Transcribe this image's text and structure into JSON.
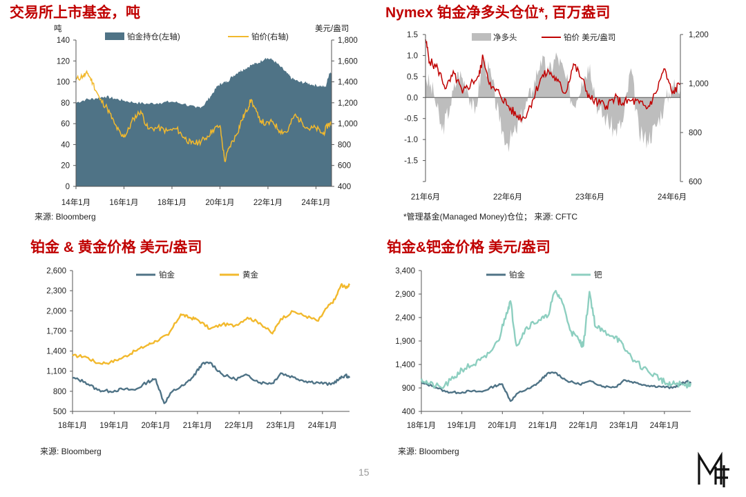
{
  "page_number": "15",
  "logo_text": "MF",
  "colors": {
    "title_red": "#c00000",
    "holdings": "#4f7386",
    "gold_line": "#f2b92d",
    "net_long": "#bdbdbd",
    "price_red": "#c00000",
    "platinum": "#4f7386",
    "gold": "#f2b92d",
    "palladium": "#8dcfc0"
  },
  "panels": [
    {
      "title": "交易所上市基金，吨",
      "source": "来源: Bloomberg",
      "chart_data": {
        "type": "area+line",
        "left_unit": "吨",
        "right_unit": "美元/盎司",
        "legend": [
          "铂金持仓(左轴)",
          "铂价(右轴)"
        ],
        "legend_position": "top",
        "x_ticks": [
          "14年1月",
          "16年1月",
          "18年1月",
          "20年1月",
          "22年1月",
          "24年1月"
        ],
        "x_range": [
          2014.0,
          2024.65
        ],
        "y_left_ticks": [
          "0",
          "20",
          "40",
          "60",
          "80",
          "100",
          "120",
          "140"
        ],
        "y_left_range": [
          0,
          140
        ],
        "y_right_ticks": [
          "400",
          "600",
          "800",
          "1,000",
          "1,200",
          "1,400",
          "1,600",
          "1,800"
        ],
        "y_right_range": [
          400,
          1800
        ],
        "series": [
          {
            "name": "铂金持仓(左轴)",
            "type": "area",
            "x": [
              2014.0,
              2014.4,
              2014.8,
              2015.2,
              2015.6,
              2016.0,
              2016.5,
              2017.0,
              2017.5,
              2018.0,
              2018.5,
              2019.0,
              2019.3,
              2019.6,
              2019.9,
              2020.1,
              2020.3,
              2020.5,
              2020.8,
              2021.0,
              2021.3,
              2021.6,
              2021.9,
              2022.2,
              2022.5,
              2022.8,
              2023.0,
              2023.3,
              2023.6,
              2023.9,
              2024.2,
              2024.4,
              2024.55,
              2024.65
            ],
            "values": [
              80,
              83,
              84,
              86,
              84,
              82,
              80,
              79,
              80,
              81,
              79,
              75,
              77,
              86,
              96,
              99,
              100,
              105,
              110,
              112,
              116,
              118,
              123,
              121,
              115,
              108,
              103,
              100,
              99,
              97,
              96,
              95,
              108,
              110
            ]
          },
          {
            "name": "铂价(右轴)",
            "type": "line",
            "x": [
              2014.0,
              2014.3,
              2014.5,
              2014.7,
              2015.0,
              2015.3,
              2015.6,
              2015.9,
              2016.1,
              2016.4,
              2016.7,
              2017.0,
              2017.4,
              2017.8,
              2018.2,
              2018.5,
              2018.8,
              2019.1,
              2019.4,
              2019.7,
              2020.0,
              2020.2,
              2020.4,
              2020.7,
              2020.9,
              2021.1,
              2021.3,
              2021.6,
              2021.9,
              2022.2,
              2022.5,
              2022.8,
              2023.1,
              2023.4,
              2023.7,
              2024.0,
              2024.3,
              2024.5,
              2024.65
            ],
            "values": [
              1420,
              1460,
              1480,
              1390,
              1230,
              1150,
              1000,
              880,
              900,
              1050,
              1120,
              950,
              960,
              930,
              950,
              870,
              810,
              820,
              860,
              940,
              980,
              640,
              780,
              900,
              1030,
              1120,
              1230,
              1060,
              990,
              1020,
              930,
              920,
              1080,
              1020,
              950,
              960,
              900,
              990,
              1000
            ]
          }
        ]
      }
    },
    {
      "title": "Nymex 铂金净多头仓位*, 百万盎司",
      "source": "*管理基金(Managed Money)仓位； 来源: CFTC",
      "chart_data": {
        "type": "area+line",
        "right_unit": "",
        "legend": [
          "净多头",
          "铂价 美元/盎司"
        ],
        "legend_position": "top",
        "x_ticks": [
          "21年6月",
          "22年6月",
          "23年6月",
          "24年6月"
        ],
        "x_range": [
          2021.45,
          2024.55
        ],
        "y_left_ticks": [
          "-2.0",
          "-1.5",
          "-1.0",
          "-0.5",
          "0.0",
          "0.5",
          "1.0",
          "1.5"
        ],
        "y_left_range": [
          -2.0,
          1.5
        ],
        "y_right_ticks": [
          "600",
          "800",
          "1,000",
          "1,200"
        ],
        "y_right_range": [
          600,
          1200
        ],
        "series": [
          {
            "name": "净多头",
            "type": "area",
            "x": [
              2021.45,
              2021.55,
              2021.65,
              2021.75,
              2021.85,
              2021.95,
              2022.05,
              2022.15,
              2022.25,
              2022.35,
              2022.45,
              2022.55,
              2022.65,
              2022.75,
              2022.85,
              2022.95,
              2023.05,
              2023.15,
              2023.25,
              2023.35,
              2023.45,
              2023.55,
              2023.65,
              2023.75,
              2023.85,
              2023.95,
              2024.05,
              2024.15,
              2024.25,
              2024.35,
              2024.45,
              2024.55
            ],
            "values": [
              0.5,
              0.1,
              -0.8,
              -0.2,
              0.6,
              0.3,
              -0.4,
              0.9,
              0.5,
              -0.6,
              -1.1,
              -0.8,
              -0.3,
              0.2,
              0.9,
              0.6,
              1.0,
              0.5,
              -0.2,
              0.4,
              0.8,
              -0.3,
              -0.5,
              -0.8,
              -0.6,
              0.7,
              -0.9,
              -1.0,
              -0.7,
              -0.2,
              0.3,
              0.2
            ]
          },
          {
            "name": "铂价 美元/盎司",
            "type": "line",
            "x": [
              2021.45,
              2021.5,
              2021.6,
              2021.7,
              2021.8,
              2021.9,
              2022.0,
              2022.1,
              2022.15,
              2022.25,
              2022.35,
              2022.45,
              2022.55,
              2022.65,
              2022.75,
              2022.85,
              2022.95,
              2023.05,
              2023.15,
              2023.25,
              2023.35,
              2023.45,
              2023.55,
              2023.65,
              2023.75,
              2023.85,
              2023.95,
              2024.05,
              2024.15,
              2024.25,
              2024.35,
              2024.45,
              2024.55
            ],
            "values": [
              1180,
              1090,
              1060,
              980,
              1040,
              960,
              1000,
              1030,
              1110,
              980,
              960,
              910,
              870,
              860,
              930,
              1020,
              1050,
              1010,
              960,
              1080,
              1020,
              940,
              920,
              910,
              940,
              920,
              930,
              920,
              900,
              960,
              1060,
              960,
              1000
            ]
          }
        ]
      }
    },
    {
      "title": "铂金 & 黄金价格 美元/盎司",
      "source": "来源: Bloomberg",
      "chart_data": {
        "type": "line",
        "legend": [
          "铂金",
          "黄金"
        ],
        "legend_position": "top",
        "x_ticks": [
          "18年1月",
          "19年1月",
          "20年1月",
          "21年1月",
          "22年1月",
          "23年1月",
          "24年1月"
        ],
        "x_range": [
          2018.0,
          2024.65
        ],
        "y_ticks": [
          "500",
          "800",
          "1,100",
          "1,400",
          "1,700",
          "2,000",
          "2,300",
          "2,600"
        ],
        "y_range": [
          500,
          2600
        ],
        "series": [
          {
            "name": "铂金",
            "x": [
              2018.0,
              2018.3,
              2018.6,
              2018.9,
              2019.2,
              2019.5,
              2019.8,
              2020.0,
              2020.2,
              2020.4,
              2020.7,
              2020.9,
              2021.1,
              2021.3,
              2021.6,
              2021.9,
              2022.2,
              2022.5,
              2022.8,
              2023.0,
              2023.3,
              2023.6,
              2023.9,
              2024.2,
              2024.4,
              2024.55,
              2024.65
            ],
            "values": [
              1000,
              940,
              820,
              800,
              830,
              820,
              940,
              980,
              620,
              800,
              900,
              1020,
              1200,
              1230,
              1050,
              980,
              1040,
              930,
              920,
              1070,
              1010,
              950,
              930,
              900,
              980,
              1040,
              1000
            ]
          },
          {
            "name": "黄金",
            "x": [
              2018.0,
              2018.3,
              2018.6,
              2018.9,
              2019.2,
              2019.5,
              2019.8,
              2020.0,
              2020.3,
              2020.6,
              2020.8,
              2021.0,
              2021.3,
              2021.6,
              2021.9,
              2022.2,
              2022.5,
              2022.8,
              2023.0,
              2023.3,
              2023.6,
              2023.9,
              2024.1,
              2024.3,
              2024.45,
              2024.55,
              2024.65
            ],
            "values": [
              1330,
              1320,
              1220,
              1230,
              1300,
              1400,
              1490,
              1550,
              1640,
              1950,
              1900,
              1870,
              1730,
              1800,
              1780,
              1900,
              1820,
              1660,
              1880,
              1990,
              1920,
              1850,
              2040,
              2170,
              2390,
              2350,
              2380
            ]
          }
        ]
      }
    },
    {
      "title": "铂金&钯金价格 美元/盎司",
      "source": "来源: Bloomberg",
      "chart_data": {
        "type": "line",
        "legend": [
          "铂金",
          "钯"
        ],
        "legend_position": "top",
        "x_ticks": [
          "18年1月",
          "19年1月",
          "20年1月",
          "21年1月",
          "22年1月",
          "23年1月",
          "24年1月"
        ],
        "x_range": [
          2018.0,
          2024.65
        ],
        "y_ticks": [
          "400",
          "900",
          "1,400",
          "1,900",
          "2,400",
          "2,900",
          "3,400"
        ],
        "y_range": [
          400,
          3400
        ],
        "series": [
          {
            "name": "铂金",
            "x": [
              2018.0,
              2018.3,
              2018.6,
              2018.9,
              2019.2,
              2019.5,
              2019.8,
              2020.0,
              2020.2,
              2020.4,
              2020.7,
              2020.9,
              2021.1,
              2021.3,
              2021.6,
              2021.9,
              2022.2,
              2022.5,
              2022.8,
              2023.0,
              2023.3,
              2023.6,
              2023.9,
              2024.2,
              2024.4,
              2024.55,
              2024.65
            ],
            "values": [
              1000,
              940,
              820,
              800,
              830,
              820,
              940,
              980,
              620,
              800,
              900,
              1020,
              1200,
              1230,
              1050,
              980,
              1040,
              930,
              920,
              1070,
              1010,
              950,
              930,
              900,
              980,
              1040,
              1000
            ]
          },
          {
            "name": "钯",
            "x": [
              2018.0,
              2018.2,
              2018.5,
              2018.8,
              2019.0,
              2019.3,
              2019.6,
              2019.9,
              2020.1,
              2020.2,
              2020.35,
              2020.6,
              2020.9,
              2021.1,
              2021.3,
              2021.45,
              2021.7,
              2021.9,
              2022.0,
              2022.15,
              2022.3,
              2022.5,
              2022.8,
              2023.0,
              2023.3,
              2023.6,
              2023.9,
              2024.1,
              2024.3,
              2024.5,
              2024.65
            ],
            "values": [
              1100,
              980,
              900,
              1100,
              1300,
              1400,
              1550,
              1900,
              2500,
              2750,
              1800,
              2200,
              2350,
              2400,
              2950,
              2800,
              2100,
              1900,
              1800,
              2950,
              2200,
              2100,
              2000,
              1750,
              1450,
              1250,
              1100,
              950,
              1000,
              950,
              1000
            ]
          }
        ]
      }
    }
  ]
}
